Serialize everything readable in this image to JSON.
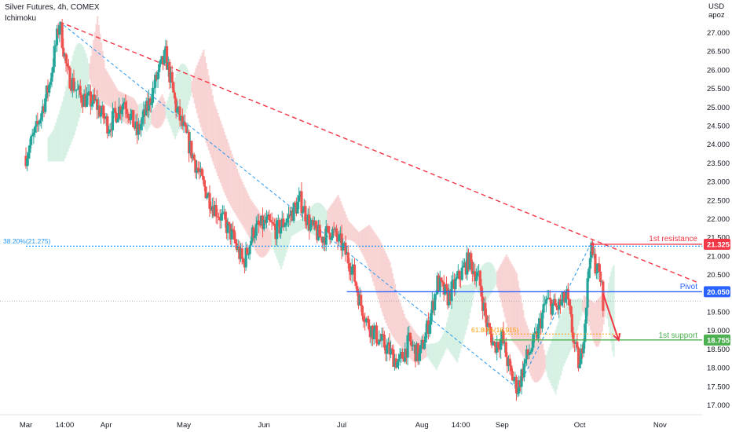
{
  "header": {
    "symbol_line": "Silver Futures, 4h, COMEX",
    "indicator": "Ichimoku"
  },
  "price_axis": {
    "currency": "USD",
    "unit": "apoz"
  },
  "colors": {
    "up_candle": "#26a69a",
    "down_candle": "#ef5350",
    "resistance": "#f23645",
    "pivot": "#2962ff",
    "support": "#4caf50",
    "fib_retracement": "#2196f3",
    "fib_support": "#ff9800",
    "cloud_red": "#f7c9c9",
    "cloud_green": "#cdeedd"
  },
  "chart_data": {
    "type": "candlestick",
    "title": "Silver Futures, 4h, COMEX",
    "y_range": [
      16.8,
      27.6
    ],
    "x_range": [
      "2021-03-01",
      "2021-11-10"
    ],
    "y_ticks": [
      "27.000",
      "26.500",
      "26.000",
      "25.500",
      "25.000",
      "24.500",
      "24.000",
      "23.500",
      "23.000",
      "22.500",
      "22.000",
      "21.500",
      "21.000",
      "20.500",
      "20.000",
      "19.500",
      "19.000",
      "18.500",
      "18.000",
      "17.500",
      "17.000"
    ],
    "x_ticks": [
      {
        "label": "Mar",
        "date": "2021-03-01"
      },
      {
        "label": "14:00",
        "date": "2021-03-16"
      },
      {
        "label": "Apr",
        "date": "2021-04-01"
      },
      {
        "label": "May",
        "date": "2021-05-01"
      },
      {
        "label": "Jun",
        "date": "2021-06-01"
      },
      {
        "label": "Jul",
        "date": "2021-07-01"
      },
      {
        "label": "Aug",
        "date": "2021-08-01"
      },
      {
        "label": "14:00",
        "date": "2021-08-16"
      },
      {
        "label": "Sep",
        "date": "2021-09-01"
      },
      {
        "label": "Oct",
        "date": "2021-10-01"
      },
      {
        "label": "Nov",
        "date": "2021-11-01"
      }
    ],
    "price_path": [
      {
        "date": "2021-03-01",
        "close": 23.7
      },
      {
        "date": "2021-03-05",
        "close": 24.4
      },
      {
        "date": "2021-03-10",
        "close": 25.6
      },
      {
        "date": "2021-03-14",
        "close": 27.3
      },
      {
        "date": "2021-03-17",
        "close": 25.9
      },
      {
        "date": "2021-03-22",
        "close": 25.3
      },
      {
        "date": "2021-03-28",
        "close": 25.1
      },
      {
        "date": "2021-04-02",
        "close": 24.5
      },
      {
        "date": "2021-04-08",
        "close": 25.2
      },
      {
        "date": "2021-04-13",
        "close": 24.3
      },
      {
        "date": "2021-04-17",
        "close": 25.0
      },
      {
        "date": "2021-04-21",
        "close": 25.9
      },
      {
        "date": "2021-04-24",
        "close": 26.4
      },
      {
        "date": "2021-04-28",
        "close": 25.0
      },
      {
        "date": "2021-05-03",
        "close": 24.0
      },
      {
        "date": "2021-05-08",
        "close": 23.0
      },
      {
        "date": "2021-05-12",
        "close": 22.4
      },
      {
        "date": "2021-05-16",
        "close": 22.0
      },
      {
        "date": "2021-05-20",
        "close": 21.5
      },
      {
        "date": "2021-05-24",
        "close": 20.8
      },
      {
        "date": "2021-05-28",
        "close": 21.7
      },
      {
        "date": "2021-06-02",
        "close": 21.9
      },
      {
        "date": "2021-06-06",
        "close": 21.7
      },
      {
        "date": "2021-06-11",
        "close": 22.1
      },
      {
        "date": "2021-06-15",
        "close": 22.5
      },
      {
        "date": "2021-06-19",
        "close": 21.8
      },
      {
        "date": "2021-06-23",
        "close": 21.5
      },
      {
        "date": "2021-06-27",
        "close": 21.7
      },
      {
        "date": "2021-07-01",
        "close": 21.3
      },
      {
        "date": "2021-07-05",
        "close": 20.7
      },
      {
        "date": "2021-07-08",
        "close": 19.8
      },
      {
        "date": "2021-07-11",
        "close": 19.2
      },
      {
        "date": "2021-07-15",
        "close": 18.8
      },
      {
        "date": "2021-07-19",
        "close": 18.5
      },
      {
        "date": "2021-07-23",
        "close": 18.1
      },
      {
        "date": "2021-07-27",
        "close": 18.7
      },
      {
        "date": "2021-07-31",
        "close": 18.3
      },
      {
        "date": "2021-08-04",
        "close": 19.3
      },
      {
        "date": "2021-08-07",
        "close": 20.3
      },
      {
        "date": "2021-08-11",
        "close": 19.9
      },
      {
        "date": "2021-08-15",
        "close": 20.4
      },
      {
        "date": "2021-08-19",
        "close": 20.9
      },
      {
        "date": "2021-08-23",
        "close": 20.4
      },
      {
        "date": "2021-08-26",
        "close": 19.2
      },
      {
        "date": "2021-08-29",
        "close": 18.6
      },
      {
        "date": "2021-09-01",
        "close": 18.8
      },
      {
        "date": "2021-09-04",
        "close": 17.9
      },
      {
        "date": "2021-09-07",
        "close": 17.45
      },
      {
        "date": "2021-09-10",
        "close": 18.2
      },
      {
        "date": "2021-09-14",
        "close": 18.8
      },
      {
        "date": "2021-09-18",
        "close": 19.8
      },
      {
        "date": "2021-09-22",
        "close": 19.6
      },
      {
        "date": "2021-09-26",
        "close": 19.9
      },
      {
        "date": "2021-09-29",
        "close": 18.6
      },
      {
        "date": "2021-10-01",
        "close": 18.0
      },
      {
        "date": "2021-10-03",
        "close": 19.3
      },
      {
        "date": "2021-10-05",
        "close": 21.2
      },
      {
        "date": "2021-10-07",
        "close": 20.8
      },
      {
        "date": "2021-10-09",
        "close": 20.4
      },
      {
        "date": "2021-10-10",
        "close": 19.8
      }
    ],
    "levels": [
      {
        "name": "1st resistance",
        "value": 21.325,
        "label": "21.325"
      },
      {
        "name": "Pivot",
        "value": 20.05,
        "label": "20.050"
      },
      {
        "name": "1st support",
        "value": 18.755,
        "label": "18.755"
      }
    ],
    "current_price": 19.8,
    "fib_retracement": {
      "label": "38.20%(21.275)",
      "value": 21.275
    },
    "fib_support": {
      "label": "61.80%(18.915)",
      "value": 18.915
    },
    "projection": {
      "from": {
        "date": "2021-10-10",
        "value": 20.0
      },
      "to": {
        "date": "2021-10-16",
        "value": 18.75
      }
    }
  },
  "annotations": {
    "resistance_label": "1st resistance",
    "pivot_label": "Pivot",
    "support_label": "1st support"
  }
}
